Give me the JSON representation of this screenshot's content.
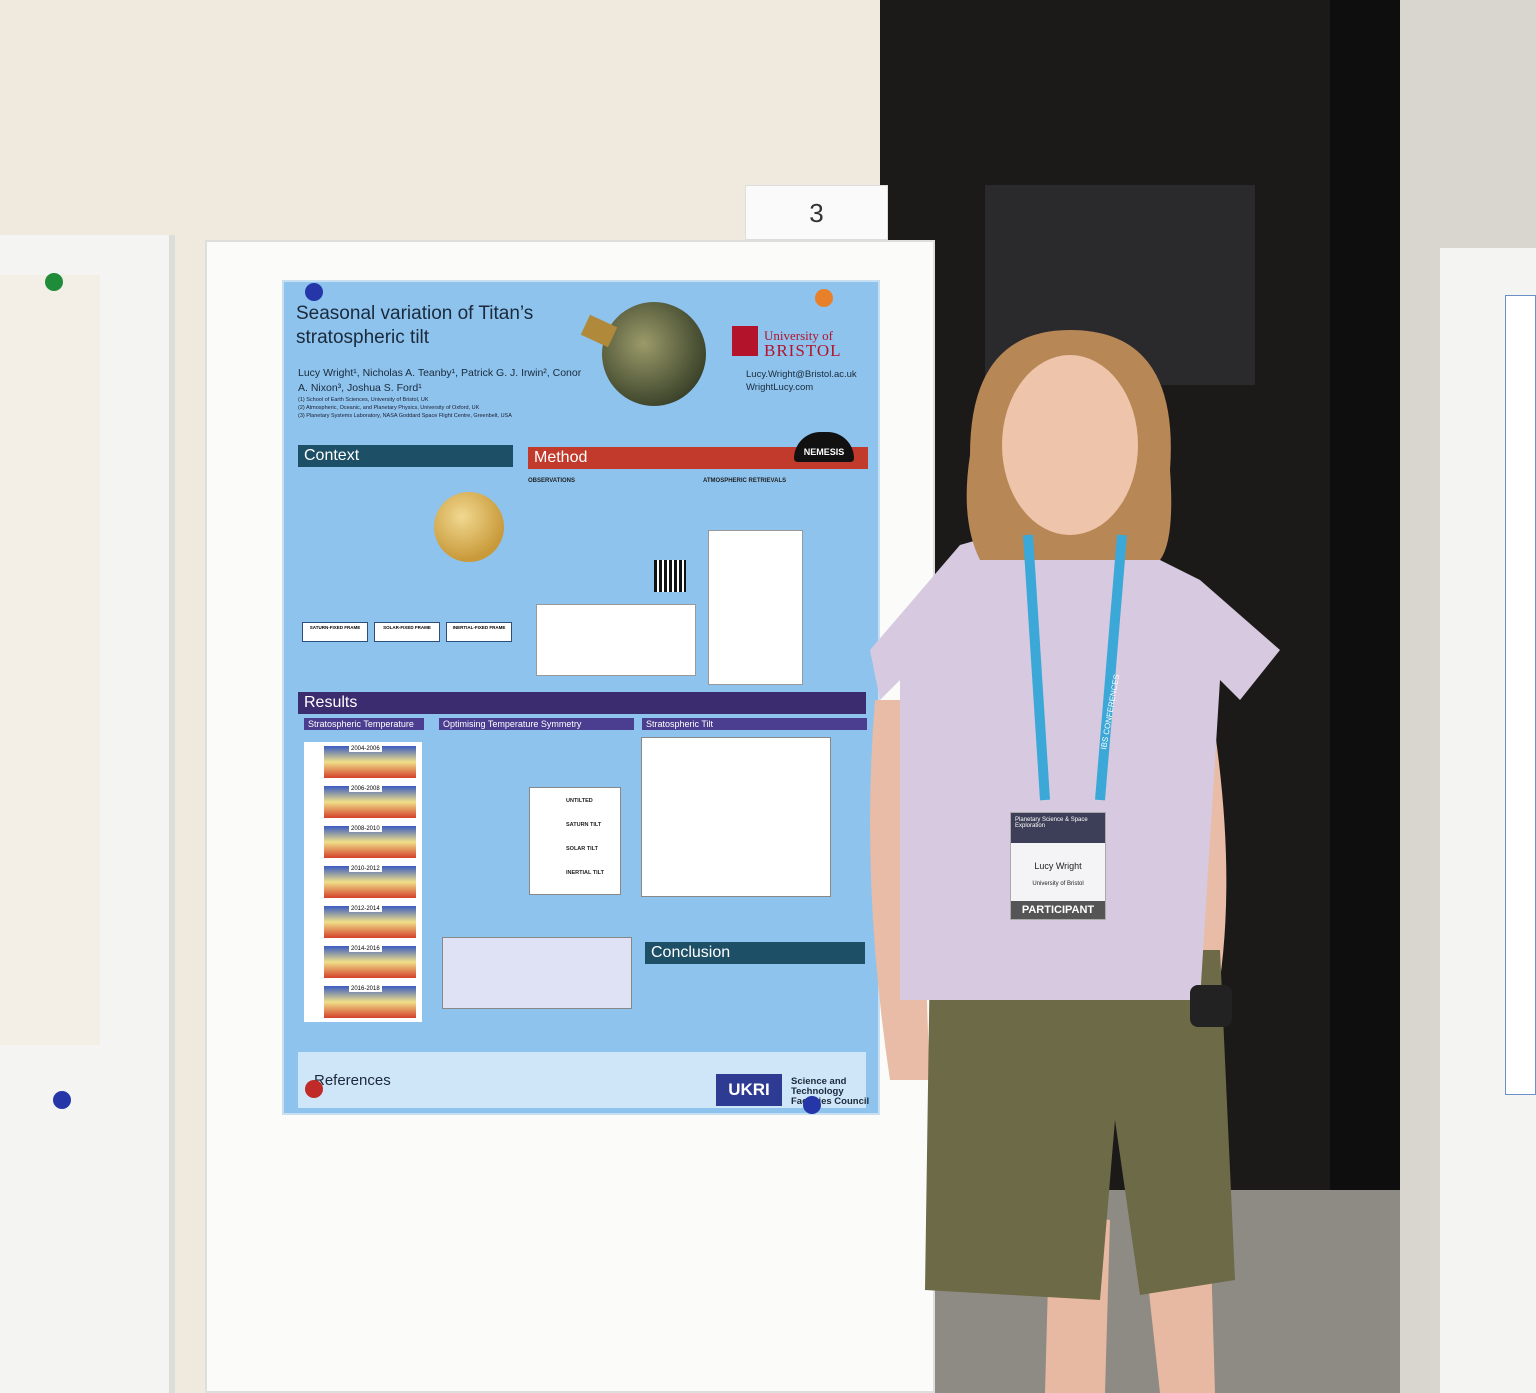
{
  "stand_number": "3",
  "poster": {
    "title": "Seasonal variation of Titan’s stratospheric tilt",
    "authors": "Lucy Wright¹, Nicholas A. Teanby¹, Patrick G. J. Irwin², Conor A. Nixon³, Joshua S. Ford¹",
    "affiliations": [
      "(1) School of Earth Sciences, University of Bristol, UK",
      "(2) Atmospheric, Oceanic, and Planetary Physics, University of Oxford, UK",
      "(3) Planetary Systems Laboratory, NASA Goddard Space Flight Centre, Greenbelt, USA"
    ],
    "institution": [
      "University of",
      "BRISTOL"
    ],
    "contacts": [
      "Lucy.Wright@Bristol.ac.uk",
      "WrightLucy.com"
    ],
    "sections": {
      "context": "Context",
      "method": "Method",
      "nemesis": "NEMESIS",
      "results": "Results",
      "conclusion": "Conclusion",
      "references": "References"
    },
    "results_panels": [
      "Stratospheric Temperature",
      "Optimising Temperature Symmetry",
      "Stratospheric Tilt"
    ],
    "frames": [
      "SATURN-FIXED FRAME",
      "SOLAR-FIXED FRAME",
      "INERTIAL-FIXED FRAME"
    ],
    "periods": [
      "2004-2006",
      "2006-2008",
      "2008-2010",
      "2010-2012",
      "2012-2014",
      "2014-2016",
      "2016-2018"
    ],
    "tilt_labels": [
      "UNTILTED",
      "SATURN TILT",
      "SOLAR TILT",
      "INERTIAL TILT"
    ],
    "method_headings": [
      "OBSERVATIONS",
      "ATMOSPHERIC RETRIEVALS"
    ],
    "funder_logo": "UKRI",
    "funder": "Science and Technology Facilities Council"
  },
  "badge": {
    "event": "Planetary Science & Space Exploration",
    "name": "Lucy Wright",
    "organisation": "University of Bristol",
    "role": "PARTICIPANT"
  },
  "lanyard": "IBS CONFERENCES"
}
